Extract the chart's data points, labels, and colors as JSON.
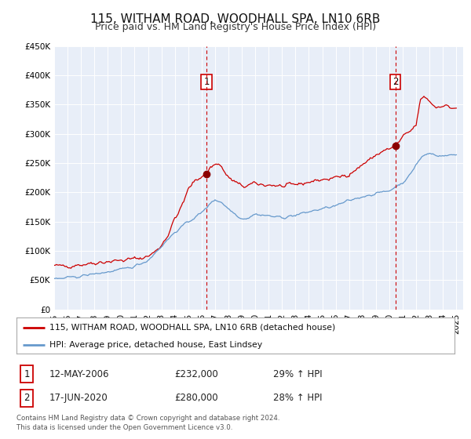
{
  "title": "115, WITHAM ROAD, WOODHALL SPA, LN10 6RB",
  "subtitle": "Price paid vs. HM Land Registry's House Price Index (HPI)",
  "ylim": [
    0,
    450000
  ],
  "xlim_start": 1995.0,
  "xlim_end": 2025.5,
  "yticks": [
    0,
    50000,
    100000,
    150000,
    200000,
    250000,
    300000,
    350000,
    400000,
    450000
  ],
  "ytick_labels": [
    "£0",
    "£50K",
    "£100K",
    "£150K",
    "£200K",
    "£250K",
    "£300K",
    "£350K",
    "£400K",
    "£450K"
  ],
  "xticks": [
    1995,
    1996,
    1997,
    1998,
    1999,
    2000,
    2001,
    2002,
    2003,
    2004,
    2005,
    2006,
    2007,
    2008,
    2009,
    2010,
    2011,
    2012,
    2013,
    2014,
    2015,
    2016,
    2017,
    2018,
    2019,
    2020,
    2021,
    2022,
    2023,
    2024,
    2025
  ],
  "red_color": "#cc0000",
  "blue_color": "#6699cc",
  "background_color": "#e8eef8",
  "grid_color": "#ffffff",
  "marker1_x": 2006.36,
  "marker1_y": 232000,
  "marker2_x": 2020.46,
  "marker2_y": 280000,
  "vline1_x": 2006.36,
  "vline2_x": 2020.46,
  "legend_label_red": "115, WITHAM ROAD, WOODHALL SPA, LN10 6RB (detached house)",
  "legend_label_blue": "HPI: Average price, detached house, East Lindsey",
  "table_row1": [
    "1",
    "12-MAY-2006",
    "£232,000",
    "29% ↑ HPI"
  ],
  "table_row2": [
    "2",
    "17-JUN-2020",
    "£280,000",
    "28% ↑ HPI"
  ],
  "footnote1": "Contains HM Land Registry data © Crown copyright and database right 2024.",
  "footnote2": "This data is licensed under the Open Government Licence v3.0.",
  "title_fontsize": 11,
  "subtitle_fontsize": 9
}
